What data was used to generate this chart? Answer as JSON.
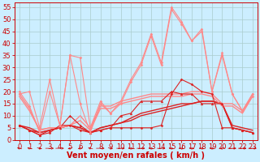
{
  "background_color": "#cceeff",
  "grid_color": "#aacccc",
  "xlabel": "Vent moyen/en rafales ( km/h )",
  "xlabel_color": "#cc0000",
  "xlabel_fontsize": 7,
  "tick_color": "#cc0000",
  "tick_fontsize": 6,
  "ylim": [
    0,
    57
  ],
  "xlim": [
    -0.5,
    23.5
  ],
  "yticks": [
    0,
    5,
    10,
    15,
    20,
    25,
    30,
    35,
    40,
    45,
    50,
    55
  ],
  "xticks": [
    0,
    1,
    2,
    3,
    4,
    5,
    6,
    7,
    8,
    9,
    10,
    11,
    12,
    13,
    14,
    15,
    16,
    17,
    18,
    19,
    20,
    21,
    22,
    23
  ],
  "series": [
    {
      "x": [
        0,
        1,
        2,
        3,
        4,
        5,
        6,
        7,
        8,
        9,
        10,
        11,
        12,
        13,
        14,
        15,
        16,
        17,
        18,
        19,
        20,
        21,
        22,
        23
      ],
      "y": [
        6,
        4,
        2,
        3,
        6,
        6,
        4,
        3,
        4,
        5,
        5,
        5,
        5,
        5,
        6,
        19,
        25,
        23,
        20,
        19,
        5,
        5,
        4,
        3
      ],
      "color": "#dd2222",
      "lw": 0.8,
      "marker": "D",
      "ms": 1.5,
      "zorder": 4
    },
    {
      "x": [
        0,
        1,
        2,
        3,
        4,
        5,
        6,
        7,
        8,
        9,
        10,
        11,
        12,
        13,
        14,
        15,
        16,
        17,
        18,
        19,
        20,
        21,
        22,
        23
      ],
      "y": [
        6,
        4,
        2,
        4,
        5,
        10,
        6,
        3,
        4,
        5,
        10,
        11,
        16,
        16,
        16,
        20,
        19,
        19,
        15,
        15,
        15,
        5,
        4,
        3
      ],
      "color": "#dd2222",
      "lw": 0.8,
      "marker": "^",
      "ms": 2,
      "zorder": 4
    },
    {
      "x": [
        0,
        1,
        2,
        3,
        4,
        5,
        6,
        7,
        8,
        9,
        10,
        11,
        12,
        13,
        14,
        15,
        16,
        17,
        18,
        19,
        20,
        21,
        22,
        23
      ],
      "y": [
        6,
        5,
        3,
        4,
        5,
        6,
        5,
        3,
        5,
        6,
        7,
        9,
        11,
        12,
        13,
        14,
        15,
        15,
        16,
        16,
        15,
        6,
        5,
        4
      ],
      "color": "#dd2222",
      "lw": 1.0,
      "marker": null,
      "ms": 0,
      "zorder": 3
    },
    {
      "x": [
        0,
        1,
        2,
        3,
        4,
        5,
        6,
        7,
        8,
        9,
        10,
        11,
        12,
        13,
        14,
        15,
        16,
        17,
        18,
        19,
        20,
        21,
        22,
        23
      ],
      "y": [
        6,
        4,
        3,
        4,
        5,
        6,
        5,
        3,
        5,
        6,
        7,
        8,
        10,
        11,
        12,
        13,
        14,
        15,
        16,
        16,
        15,
        5,
        4,
        3
      ],
      "color": "#dd2222",
      "lw": 1.0,
      "marker": null,
      "ms": 0,
      "zorder": 3
    },
    {
      "x": [
        0,
        1,
        2,
        3,
        4,
        5,
        6,
        7,
        8,
        9,
        10,
        11,
        12,
        13,
        14,
        15,
        16,
        17,
        18,
        19,
        20,
        21,
        22,
        23
      ],
      "y": [
        20,
        14,
        3,
        20,
        6,
        35,
        15,
        3,
        15,
        11,
        16,
        25,
        32,
        44,
        32,
        55,
        49,
        41,
        46,
        20,
        36,
        19,
        12,
        19
      ],
      "color": "#ff8888",
      "lw": 0.8,
      "marker": "D",
      "ms": 1.5,
      "zorder": 4
    },
    {
      "x": [
        0,
        1,
        2,
        3,
        4,
        5,
        6,
        7,
        8,
        9,
        10,
        11,
        12,
        13,
        14,
        15,
        16,
        17,
        18,
        19,
        20,
        21,
        22,
        23
      ],
      "y": [
        19,
        20,
        5,
        25,
        6,
        35,
        34,
        5,
        16,
        11,
        15,
        24,
        31,
        43,
        31,
        54,
        48,
        41,
        45,
        20,
        35,
        19,
        12,
        18
      ],
      "color": "#ff8888",
      "lw": 0.8,
      "marker": "D",
      "ms": 1.5,
      "zorder": 4
    },
    {
      "x": [
        0,
        1,
        2,
        3,
        4,
        5,
        6,
        7,
        8,
        9,
        10,
        11,
        12,
        13,
        14,
        15,
        16,
        17,
        18,
        19,
        20,
        21,
        22,
        23
      ],
      "y": [
        19,
        13,
        4,
        5,
        5,
        6,
        10,
        5,
        14,
        14,
        16,
        17,
        18,
        19,
        19,
        19,
        19,
        20,
        20,
        19,
        15,
        15,
        12,
        19
      ],
      "color": "#ff8888",
      "lw": 1.0,
      "marker": null,
      "ms": 0,
      "zorder": 3
    },
    {
      "x": [
        0,
        1,
        2,
        3,
        4,
        5,
        6,
        7,
        8,
        9,
        10,
        11,
        12,
        13,
        14,
        15,
        16,
        17,
        18,
        19,
        20,
        21,
        22,
        23
      ],
      "y": [
        18,
        12,
        4,
        5,
        5,
        6,
        8,
        4,
        13,
        13,
        15,
        16,
        17,
        18,
        18,
        18,
        18,
        19,
        19,
        18,
        14,
        14,
        11,
        18
      ],
      "color": "#ff8888",
      "lw": 1.0,
      "marker": null,
      "ms": 0,
      "zorder": 3
    }
  ],
  "arrow_angles": [
    225,
    225,
    45,
    90,
    90,
    315,
    315,
    225,
    90,
    45,
    90,
    45,
    90,
    45,
    90,
    45,
    45,
    45,
    45,
    45,
    315,
    90,
    90,
    90
  ]
}
